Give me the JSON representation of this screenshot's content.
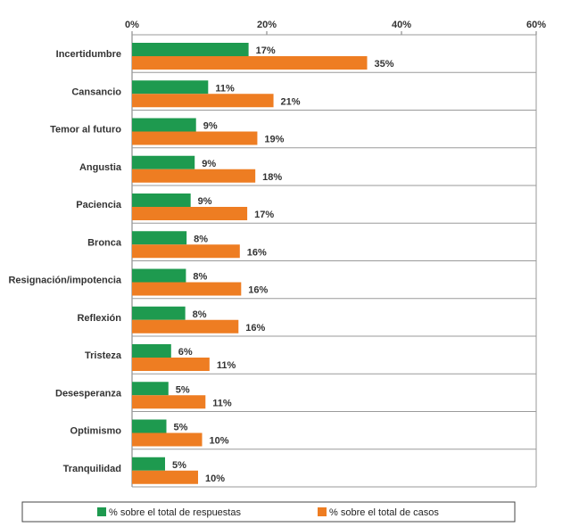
{
  "chart_data": {
    "type": "bar",
    "orientation": "horizontal",
    "categories": [
      "Incertidumbre",
      "Cansancio",
      "Temor al futuro",
      "Angustia",
      "Paciencia",
      "Bronca",
      "Resignación/impotencia",
      "Reflexión",
      "Tristeza",
      "Desesperanza",
      "Optimismo",
      "Tranquilidad"
    ],
    "series": [
      {
        "name": "% sobre el total de respuestas",
        "color": "#1e9a4f",
        "values": [
          17.3,
          11.3,
          9.5,
          9.3,
          8.7,
          8.1,
          8.0,
          7.9,
          5.8,
          5.4,
          5.1,
          4.9
        ],
        "labels": [
          "17%",
          "11%",
          "9%",
          "9%",
          "9%",
          "8%",
          "8%",
          "8%",
          "6%",
          "5%",
          "5%",
          "5%"
        ]
      },
      {
        "name": "% sobre el total de casos",
        "color": "#ee7d22",
        "values": [
          34.9,
          21.0,
          18.6,
          18.3,
          17.1,
          16.0,
          16.2,
          15.8,
          11.5,
          10.9,
          10.4,
          9.8
        ],
        "labels": [
          "35%",
          "21%",
          "19%",
          "18%",
          "17%",
          "16%",
          "16%",
          "16%",
          "11%",
          "11%",
          "10%",
          "10%"
        ]
      }
    ],
    "xlim": [
      0,
      60
    ],
    "x_ticks": [
      0,
      20,
      40,
      60
    ],
    "x_tick_labels": [
      "0%",
      "20%",
      "40%",
      "60%"
    ],
    "x_axis_position": "top",
    "grid": false,
    "legend_position": "bottom"
  }
}
